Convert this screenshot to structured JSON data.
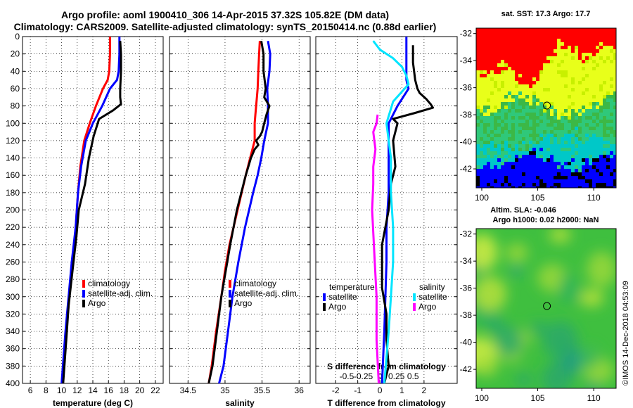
{
  "header": {
    "title_line1": "Argo profile: aoml 1900410_306 14-Apr-2015 37.32S 105.82E (DM data)",
    "title_line2": "Climatology: CARS2009. Satellite-adjusted climatology: synTS_20150414.nc (0.88d earlier)"
  },
  "colors": {
    "climatology": "#ff0000",
    "satellite": "#0000ff",
    "argo": "#000000",
    "s_satellite": "#00e5ff",
    "s_argo": "#ff00ff"
  },
  "depth_ticks": [
    "0",
    "20",
    "40",
    "60",
    "80",
    "100",
    "120",
    "140",
    "160",
    "180",
    "200",
    "220",
    "240",
    "260",
    "280",
    "300",
    "320",
    "340",
    "360",
    "380",
    "400"
  ],
  "chart_data": [
    {
      "type": "line",
      "title": "",
      "xlabel": "temperature (deg C)",
      "ylabel": "depth",
      "xlim": [
        5,
        23
      ],
      "ylim": [
        400,
        0
      ],
      "xticks": [
        "6",
        "8",
        "10",
        "12",
        "14",
        "16",
        "18",
        "20",
        "22"
      ],
      "legend": [
        "climatology",
        "satellite-adj. clim.",
        "Argo"
      ],
      "series": [
        {
          "name": "climatology",
          "color": "#ff0000",
          "x": [
            16.2,
            16.2,
            16.1,
            15.9,
            15.3,
            14.4,
            13.6,
            12.9,
            12.4,
            12.1,
            11.8,
            11.4,
            10.6,
            10.1
          ],
          "y": [
            0,
            20,
            40,
            50,
            60,
            80,
            100,
            120,
            150,
            180,
            220,
            260,
            340,
            400
          ]
        },
        {
          "name": "satellite-adj. clim.",
          "color": "#0000ff",
          "x": [
            17.4,
            17.4,
            17.3,
            17.1,
            16.2,
            15.2,
            14.0,
            13.1,
            12.5,
            12.1,
            11.8,
            11.3,
            10.5,
            10.0
          ],
          "y": [
            0,
            20,
            40,
            50,
            60,
            80,
            100,
            120,
            150,
            180,
            220,
            260,
            340,
            400
          ]
        },
        {
          "name": "Argo",
          "color": "#000000",
          "x": [
            17.5,
            17.6,
            17.6,
            17.5,
            17.5,
            17.6,
            16.6,
            14.8,
            14.1,
            13.5,
            13.0,
            12.2,
            11.9,
            11.4,
            10.9,
            10.6,
            10.2
          ],
          "y": [
            5,
            20,
            40,
            60,
            70,
            78,
            85,
            95,
            115,
            140,
            170,
            200,
            230,
            270,
            310,
            350,
            400
          ]
        }
      ]
    },
    {
      "type": "line",
      "title": "",
      "xlabel": "salinity",
      "ylabel": "depth",
      "xlim": [
        34.25,
        36.15
      ],
      "ylim": [
        400,
        0
      ],
      "xticks": [
        "34.5",
        "35",
        "35.5",
        "36"
      ],
      "legend": [
        "climatology",
        "satellite-adj. clim.",
        "Argo"
      ],
      "series": [
        {
          "name": "climatology",
          "color": "#ff0000",
          "x": [
            35.47,
            35.46,
            35.45,
            35.44,
            35.42,
            35.41,
            35.4,
            35.4,
            35.34,
            35.28,
            35.17,
            35.06,
            35.0,
            34.95,
            34.88,
            34.82,
            34.78
          ],
          "y": [
            5,
            20,
            40,
            60,
            80,
            90,
            100,
            120,
            140,
            160,
            200,
            240,
            270,
            300,
            340,
            380,
            400
          ]
        },
        {
          "name": "satellite-adj. clim.",
          "color": "#0000ff",
          "x": [
            35.58,
            35.61,
            35.6,
            35.57,
            35.58,
            35.58,
            35.53,
            35.49,
            35.44,
            35.38,
            35.27,
            35.18,
            35.1,
            35.04,
            34.98,
            34.92
          ],
          "y": [
            5,
            20,
            40,
            60,
            80,
            100,
            120,
            140,
            160,
            180,
            220,
            260,
            300,
            340,
            380,
            400
          ]
        },
        {
          "name": "Argo",
          "color": "#000000",
          "x": [
            35.49,
            35.52,
            35.52,
            35.55,
            35.53,
            35.6,
            35.56,
            35.53,
            35.5,
            35.47,
            35.42,
            35.45,
            35.4,
            35.35,
            35.28,
            35.22,
            35.16,
            35.07,
            35.01,
            34.95,
            34.89,
            34.83,
            34.78
          ],
          "y": [
            5,
            20,
            40,
            60,
            70,
            80,
            90,
            100,
            110,
            115,
            120,
            125,
            130,
            140,
            160,
            180,
            200,
            240,
            270,
            300,
            340,
            380,
            400
          ]
        }
      ]
    },
    {
      "type": "line",
      "title": "",
      "xlabel": "T difference from climatology",
      "x2label": "S difference from climatology",
      "ylabel": "depth",
      "xlim": [
        -2.9,
        3.5
      ],
      "ylim": [
        400,
        0
      ],
      "xticks": [
        "-2",
        "-1",
        "0",
        "1",
        "2"
      ],
      "x2ticks": [
        "-0.5",
        "-0.25",
        "0",
        "0.25",
        "0.5"
      ],
      "legend_temperature_title": "temperature",
      "legend_salinity_title": "salinity",
      "legend_temperature": [
        "satellite",
        "Argo"
      ],
      "legend_salinity": [
        "satellite",
        "Argo"
      ],
      "series": [
        {
          "name": "T satellite",
          "color": "#0000ff",
          "x": [
            1.2,
            1.2,
            1.2,
            1.2,
            1.3,
            0.8,
            0.4,
            0.4,
            0.4,
            0.4,
            0.3,
            0.3,
            0.2,
            0.1
          ],
          "y": [
            0,
            20,
            40,
            50,
            60,
            80,
            100,
            120,
            150,
            180,
            220,
            260,
            340,
            400
          ]
        },
        {
          "name": "T Argo",
          "color": "#000000",
          "x": [
            1.5,
            1.5,
            1.6,
            1.7,
            1.8,
            2.1,
            2.3,
            2.4,
            1.6,
            0.6,
            0.8,
            0.6,
            0.7,
            0.5,
            0.4,
            0.1,
            0.1,
            0.3,
            0.3,
            0.4,
            0.2
          ],
          "y": [
            10,
            30,
            50,
            60,
            65,
            72,
            78,
            82,
            88,
            95,
            100,
            120,
            150,
            170,
            200,
            240,
            290,
            320,
            350,
            380,
            400
          ]
        },
        {
          "name": "S satellite",
          "color": "#00e5ff",
          "x": [
            -0.3,
            0.0,
            0.6,
            1.0,
            1.2,
            1.3,
            0.6,
            0.3,
            0.5,
            0.5,
            0.6,
            0.6,
            0.5,
            0.4,
            0.2
          ],
          "y": [
            5,
            15,
            25,
            35,
            45,
            55,
            75,
            100,
            140,
            180,
            220,
            260,
            300,
            340,
            400
          ]
        },
        {
          "name": "S Argo",
          "color": "#ff00ff",
          "x": [
            -0.1,
            -0.15,
            -0.3,
            -0.2,
            -0.3,
            -0.3,
            -0.35,
            -0.25,
            -0.15,
            -0.15,
            -0.05
          ],
          "y": [
            90,
            100,
            110,
            130,
            150,
            170,
            200,
            250,
            300,
            350,
            400
          ]
        }
      ]
    }
  ],
  "map_sst": {
    "title": "sat. SST: 17.3  Argo: 17.7",
    "xticks": [
      "100",
      "105",
      "110"
    ],
    "yticks": [
      "-32",
      "-34",
      "-36",
      "-38",
      "-40",
      "-42"
    ],
    "xlim": [
      99.5,
      112.0
    ],
    "ylim": [
      -43.4,
      -31.6
    ],
    "argo_lon": 105.82,
    "argo_lat": -37.32
  },
  "map_sla": {
    "title_line1": "Altim. SLA: -0.046",
    "title_line2": "Argo h1000: 0.02 h2000: NaN",
    "xticks": [
      "100",
      "105",
      "110"
    ],
    "yticks": [
      "-32",
      "-34",
      "-36",
      "-38",
      "-40",
      "-42"
    ],
    "xlim": [
      99.5,
      112.0
    ],
    "ylim": [
      -43.4,
      -31.6
    ],
    "argo_lon": 105.82,
    "argo_lat": -37.32
  },
  "footer": {
    "credit": "©IMOS 14-Dec-2018 04:53:09"
  }
}
